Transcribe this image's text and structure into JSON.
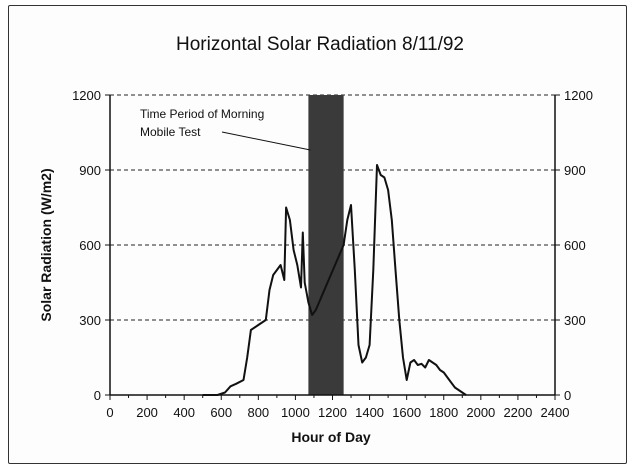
{
  "chart_data": {
    "type": "line",
    "title": "Horizontal Solar Radiation 8/11/92",
    "xlabel": "Hour of Day",
    "ylabel": "Solar Radiation (W/m2)",
    "xlim": [
      0,
      2400
    ],
    "ylim": [
      0,
      1200
    ],
    "x_ticks": [
      0,
      200,
      400,
      600,
      800,
      1000,
      1200,
      1400,
      1600,
      1800,
      2000,
      2200,
      2400
    ],
    "y_ticks": [
      0,
      300,
      600,
      900,
      1200
    ],
    "y_ticks_right": [
      0,
      300,
      600,
      900,
      1200
    ],
    "grid": "horizontal dashed",
    "annotation": {
      "lines": [
        "Time Period of Morning",
        "Mobile Test"
      ],
      "shaded_range": [
        1070,
        1260
      ]
    },
    "series": [
      {
        "x": [
          500,
          540,
          580,
          620,
          650,
          680,
          720,
          740,
          760,
          800,
          840,
          860,
          880,
          900,
          920,
          940,
          950,
          970,
          990,
          1010,
          1030,
          1040,
          1050,
          1070,
          1090,
          1110,
          1260,
          1280,
          1300,
          1320,
          1340,
          1360,
          1380,
          1400,
          1420,
          1440,
          1460,
          1480,
          1500,
          1520,
          1540,
          1560,
          1580,
          1600,
          1620,
          1640,
          1660,
          1680,
          1700,
          1720,
          1740,
          1760,
          1780,
          1800,
          1830,
          1860,
          1880,
          1900,
          1920
        ],
        "y": [
          0,
          0,
          0,
          10,
          35,
          45,
          60,
          150,
          260,
          280,
          300,
          420,
          480,
          500,
          520,
          460,
          750,
          700,
          580,
          520,
          430,
          650,
          450,
          370,
          320,
          340,
          600,
          700,
          760,
          500,
          200,
          130,
          150,
          200,
          500,
          920,
          880,
          870,
          820,
          700,
          500,
          300,
          150,
          60,
          130,
          140,
          120,
          125,
          110,
          140,
          130,
          120,
          100,
          90,
          60,
          30,
          20,
          10,
          0
        ]
      }
    ]
  }
}
